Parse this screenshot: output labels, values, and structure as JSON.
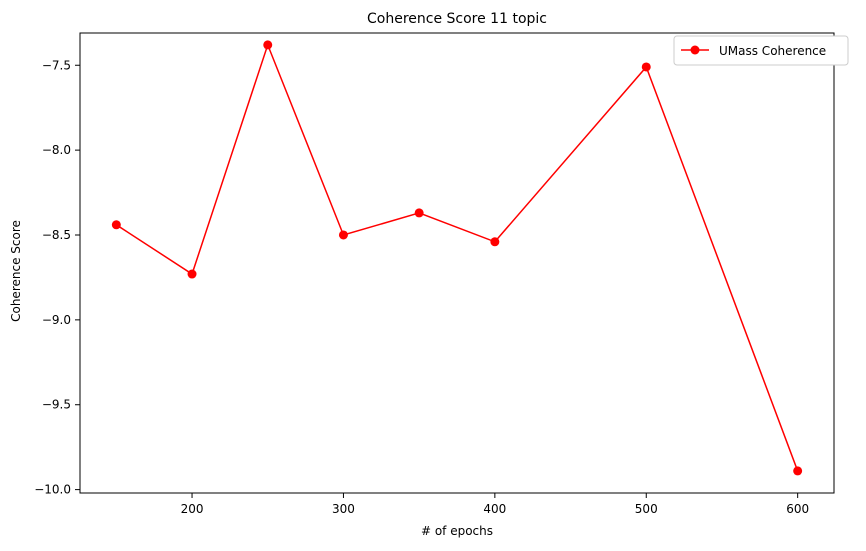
{
  "chart_data": {
    "type": "line",
    "title": "Coherence Score 11 topic",
    "xlabel": "# of epochs",
    "ylabel": "Coherence Score",
    "x": [
      150,
      200,
      250,
      300,
      350,
      400,
      500,
      600
    ],
    "series": [
      {
        "name": "UMass Coherence",
        "color": "#ff0000",
        "marker": "circle",
        "values": [
          -8.44,
          -8.73,
          -7.38,
          -8.5,
          -8.37,
          -8.54,
          -7.51,
          -9.89
        ]
      }
    ],
    "xlim": [
      126,
      624
    ],
    "ylim": [
      -10.02,
      -7.31
    ],
    "xticks": [
      200,
      300,
      400,
      500,
      600
    ],
    "yticks": [
      -7.5,
      -8.0,
      -8.5,
      -9.0,
      -9.5,
      -10.0
    ],
    "ytick_labels": [
      "−7.5",
      "−8.0",
      "−8.5",
      "−9.0",
      "−9.5",
      "−10.0"
    ],
    "grid": false,
    "legend": "top-right"
  }
}
